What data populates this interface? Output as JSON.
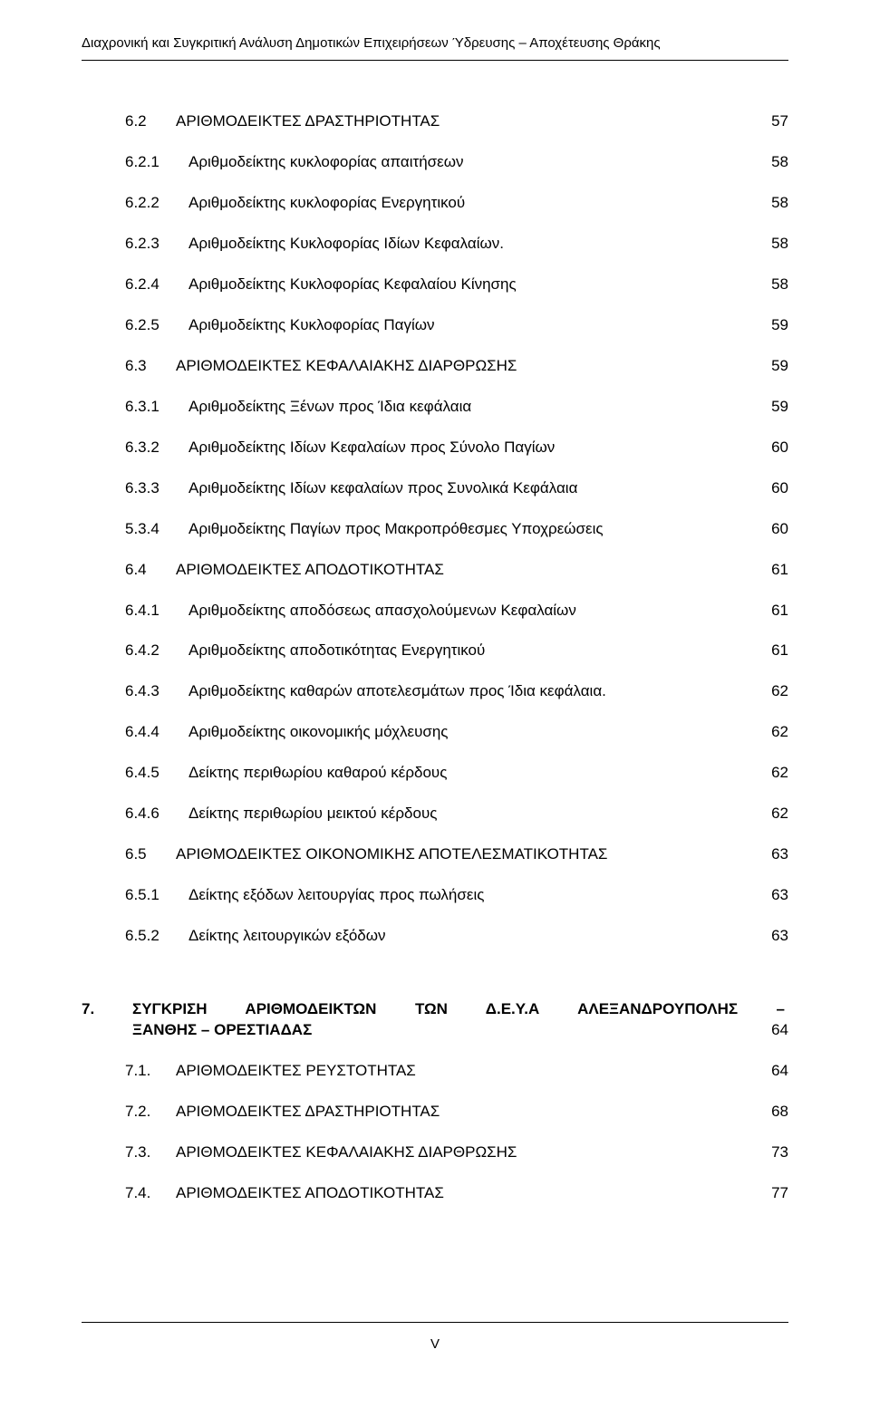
{
  "header": "Διαχρονική και Συγκριτική Ανάλυση Δημοτικών Επιχειρήσεων Ύδρευσης – Αποχέτευσης Θράκης",
  "page_number": "V",
  "toc": {
    "r_6_2": {
      "num": "6.2",
      "txt": "ΑΡΙΘΜΟΔΕΙΚΤΕΣ ΔΡΑΣΤΗΡΙΟΤΗΤΑΣ",
      "pg": "57"
    },
    "r_6_2_1": {
      "num": "6.2.1",
      "txt": "Αριθμοδείκτης κυκλοφορίας απαιτήσεων",
      "pg": "58"
    },
    "r_6_2_2": {
      "num": "6.2.2",
      "txt": "Αριθμοδείκτης κυκλοφορίας Ενεργητικού",
      "pg": "58"
    },
    "r_6_2_3": {
      "num": "6.2.3",
      "txt": "Αριθμοδείκτης Κυκλοφορίας  Ιδίων Κεφαλαίων.",
      "pg": "58"
    },
    "r_6_2_4": {
      "num": "6.2.4",
      "txt": "Αριθμοδείκτης Κυκλοφορίας Κεφαλαίου Κίνησης",
      "pg": "58"
    },
    "r_6_2_5": {
      "num": "6.2.5",
      "txt": "Αριθμοδείκτης Κυκλοφορίας Παγίων",
      "pg": "59"
    },
    "r_6_3": {
      "num": "6.3",
      "txt": "ΑΡΙΘΜΟΔΕΙΚΤΕΣ ΚΕΦΑΛΑΙΑΚΗΣ ΔΙΑΡΘΡΩΣΗΣ",
      "pg": "59"
    },
    "r_6_3_1": {
      "num": "6.3.1",
      "txt": "Αριθμοδείκτης Ξένων προς Ίδια κεφάλαια",
      "pg": "59"
    },
    "r_6_3_2": {
      "num": "6.3.2",
      "txt": "Αριθμοδείκτης Ιδίων Κεφαλαίων προς Σύνολο Παγίων",
      "pg": "60"
    },
    "r_6_3_3": {
      "num": "6.3.3",
      "txt": "Αριθμοδείκτης Ιδίων κεφαλαίων προς Συνολικά Κεφάλαια",
      "pg": "60"
    },
    "r_6_3_4": {
      "num": "5.3.4",
      "txt": "Αριθμοδείκτης Παγίων προς Μακροπρόθεσμες Υποχρεώσεις",
      "pg": "60"
    },
    "r_6_4": {
      "num": "6.4",
      "txt": "ΑΡΙΘΜΟΔΕΙΚΤΕΣ ΑΠΟΔΟΤΙΚΟΤΗΤΑΣ",
      "pg": "61"
    },
    "r_6_4_1": {
      "num": "6.4.1",
      "txt": "Αριθμοδείκτης αποδόσεως απασχολούμενων Κεφαλαίων",
      "pg": "61"
    },
    "r_6_4_2": {
      "num": "6.4.2",
      "txt": "Αριθμοδείκτης  αποδοτικότητας Ενεργητικού",
      "pg": "61"
    },
    "r_6_4_3": {
      "num": "6.4.3",
      "txt": "Αριθμοδείκτης καθαρών αποτελεσμάτων προς Ίδια κεφάλαια.",
      "pg": "62"
    },
    "r_6_4_4": {
      "num": "6.4.4",
      "txt": "Αριθμοδείκτης οικονομικής μόχλευσης",
      "pg": "62"
    },
    "r_6_4_5": {
      "num": "6.4.5",
      "txt": "Δείκτης περιθωρίου καθαρού κέρδους",
      "pg": "62"
    },
    "r_6_4_6": {
      "num": "6.4.6",
      "txt": "Δείκτης περιθωρίου μεικτού κέρδους",
      "pg": "62"
    },
    "r_6_5": {
      "num": "6.5",
      "txt": "ΑΡΙΘΜΟΔΕΙΚΤΕΣ ΟΙΚΟΝΟΜΙΚΗΣ ΑΠΟΤΕΛΕΣΜΑΤΙΚΟΤΗΤΑΣ",
      "pg": "63"
    },
    "r_6_5_1": {
      "num": "6.5.1",
      "txt": "Δείκτης εξόδων λειτουργίας προς πωλήσεις",
      "pg": "63"
    },
    "r_6_5_2": {
      "num": "6.5.2",
      "txt": "Δείκτης λειτουργικών εξόδων",
      "pg": "63"
    },
    "ch7": {
      "num": "7.",
      "line1": "ΣΥΓΚΡΙΣΗ ΑΡΙΘΜΟΔΕΙΚΤΩΝ ΤΩΝ  Δ.Ε.Υ.Α ΑΛΕΞΑΝΔΡΟΥΠΟΛΗΣ –",
      "line2": "ΞΑΝΘΗΣ – ΟΡΕΣΤΙΑΔΑΣ",
      "pg": "64"
    },
    "r_7_1": {
      "num": "7.1.",
      "txt": "ΑΡΙΘΜΟΔΕΙΚΤΕΣ ΡΕΥΣΤΟΤΗΤΑΣ",
      "pg": "64"
    },
    "r_7_2": {
      "num": "7.2.",
      "txt": "ΑΡΙΘΜΟΔΕΙΚΤΕΣ ΔΡΑΣΤΗΡΙΟΤΗΤΑΣ",
      "pg": "68"
    },
    "r_7_3": {
      "num": "7.3.",
      "txt": "ΑΡΙΘΜΟΔΕΙΚΤΕΣ ΚΕΦΑΛΑΙΑΚΗΣ ΔΙΑΡΘΡΩΣΗΣ",
      "pg": "73"
    },
    "r_7_4": {
      "num": "7.4.",
      "txt": "ΑΡΙΘΜΟΔΕΙΚΤΕΣ ΑΠΟΔΟΤΙΚΟΤΗΤΑΣ",
      "pg": "77"
    }
  }
}
